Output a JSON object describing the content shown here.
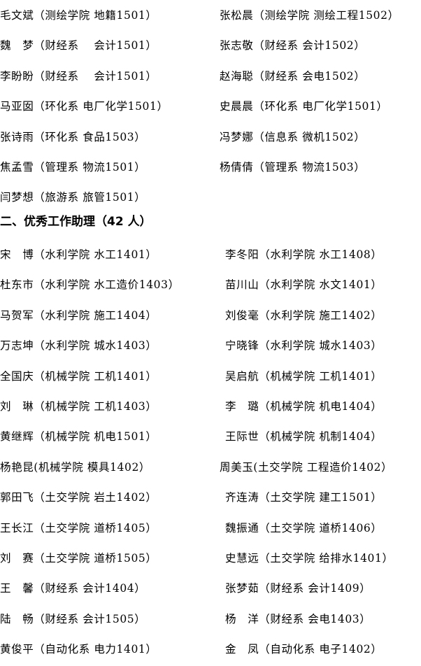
{
  "section1": {
    "rows": [
      [
        "毛文斌（测绘学院 地籍1501）",
        "张松晨（测绘学院 测绘工程1502）"
      ],
      [
        "魏　梦（财经系　 会计1501）",
        "张志敬（财经系 会计1502）"
      ],
      [
        "李盼盼（财经系　 会计1501）",
        "赵海聪（财经系 会电1502）"
      ],
      [
        "马亚囡（环化系 电厂化学1501）",
        "史晨晨（环化系 电厂化学1501）"
      ],
      [
        "张诗雨（环化系 食品1503）",
        "冯梦娜（信息系 微机1502）"
      ],
      [
        "焦孟雪（管理系 物流1501）",
        "杨倩倩（管理系 物流1503）"
      ],
      [
        "闫梦想（旅游系 旅管1501）",
        ""
      ]
    ]
  },
  "section2": {
    "heading": "二、优秀工作助理（42 人）",
    "rows": [
      [
        "宋　博（水利学院 水工1401）",
        "李冬阳（水利学院 水工1408）"
      ],
      [
        "杜东市（水利学院 水工造价1403）",
        "苗川山（水利学院 水文1401）"
      ],
      [
        "马贺军（水利学院 施工1404）",
        "刘俊毫（水利学院 施工1402）"
      ],
      [
        "万志坤（水利学院 城水1403）",
        "宁晓锋（水利学院 城水1403）"
      ],
      [
        "全国庆（机械学院 工机1401）",
        "吴启航（机械学院 工机1401）"
      ],
      [
        "刘　琳（机械学院 工机1403）",
        "李　璐（机械学院 机电1404）"
      ],
      [
        "黄继辉（机械学院 机电1501）",
        "王际世（机械学院 机制1404）"
      ],
      [
        "杨艳昆(机械学院 模具1402）",
        "周美玉(土交学院 工程造价1402）"
      ],
      [
        "郭田飞（土交学院 岩土1402）",
        "齐连涛（土交学院 建工1501）"
      ],
      [
        "王长江（土交学院 道桥1405）",
        "魏振通（土交学院 道桥1406）"
      ],
      [
        "刘　赛（土交学院 道桥1505）",
        "史慧远（土交学院 给排水1401）"
      ],
      [
        "王　馨（财经系 会计1404）",
        "张梦茹（财经系 会计1409）"
      ],
      [
        "陆　畅（财经系 会计1505）",
        "杨　洋（财经系 会电1403）"
      ],
      [
        "黄俊平（自动化系 电力1401）",
        "金　凤（自动化系 电子1402）"
      ]
    ]
  }
}
